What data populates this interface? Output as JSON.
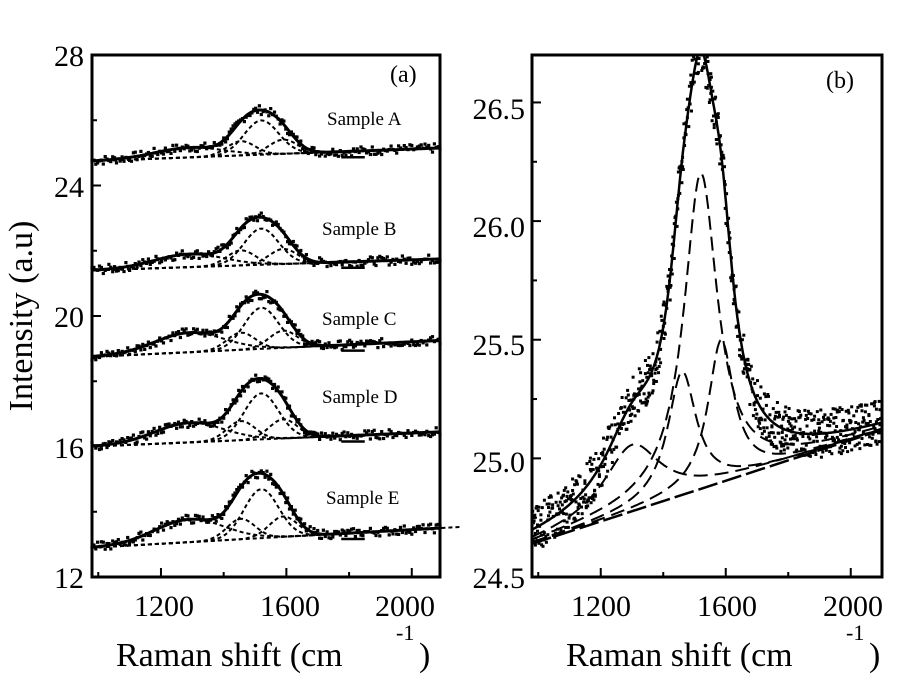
{
  "chart_data": [
    {
      "panel": "a",
      "type": "line",
      "panel_label": "(a)",
      "xlabel": "Raman shift (cm",
      "xlabel_sup": "-1",
      "xlabel_close": ")",
      "ylabel": "Intensity (a.u)",
      "xlim": [
        980,
        2090
      ],
      "ylim": [
        12,
        28
      ],
      "xticks": [
        1200,
        1600,
        2000
      ],
      "yticks": [
        12,
        16,
        20,
        24,
        28
      ],
      "x_tick_labels": [
        "1200",
        "1600",
        "2000"
      ],
      "y_tick_labels": [
        "12",
        "16",
        "20",
        "24",
        "28"
      ],
      "series": [
        {
          "name": "Sample A",
          "baseline_start": 24.75,
          "baseline_end": 25.15,
          "peak_height": 1.75,
          "shoulder_height": 0.3
        },
        {
          "name": "Sample B",
          "baseline_start": 21.4,
          "baseline_end": 21.75,
          "peak_height": 1.85,
          "shoulder_height": 0.4
        },
        {
          "name": "Sample C",
          "baseline_start": 18.75,
          "baseline_end": 19.25,
          "peak_height": 2.1,
          "shoulder_height": 0.6
        },
        {
          "name": "Sample D",
          "baseline_start": 16.0,
          "baseline_end": 16.45,
          "peak_height": 2.35,
          "shoulder_height": 0.6
        },
        {
          "name": "Sample E",
          "baseline_start": 12.9,
          "baseline_end": 13.5,
          "peak_height": 2.5,
          "shoulder_height": 0.7
        }
      ]
    },
    {
      "panel": "b",
      "type": "line",
      "panel_label": "(b)",
      "xlabel": "Raman shift (cm",
      "xlabel_sup": "-1",
      "xlabel_close": ")",
      "xlim": [
        980,
        2100
      ],
      "ylim": [
        24.5,
        26.7
      ],
      "xticks": [
        1200,
        1600,
        2000
      ],
      "yticks": [
        24.5,
        25.0,
        25.5,
        26.0,
        26.5
      ],
      "x_tick_labels": [
        "1200",
        "1600",
        "2000"
      ],
      "y_tick_labels": [
        "24.5",
        "25.0",
        "25.5",
        "26.0",
        "26.5"
      ],
      "baseline": {
        "start": 24.64,
        "end": 25.12
      },
      "components": [
        {
          "center": 1300,
          "height": 0.28,
          "width": 110
        },
        {
          "center": 1460,
          "height": 0.52,
          "width": 55
        },
        {
          "center": 1520,
          "height": 1.33,
          "width": 65
        },
        {
          "center": 1585,
          "height": 0.6,
          "width": 50
        }
      ],
      "series": [
        {
          "name": "measured data"
        },
        {
          "name": "fitted envelope"
        },
        {
          "name": "fitted components"
        },
        {
          "name": "baseline"
        }
      ]
    }
  ]
}
